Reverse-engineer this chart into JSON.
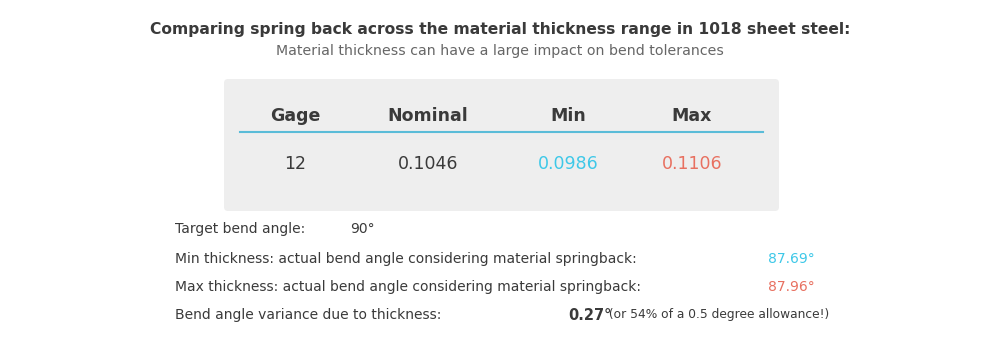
{
  "title_bold": "Comparing spring back across the material thickness range in 1018 sheet steel:",
  "title_sub": "Material thickness can have a large impact on bend tolerances",
  "table_headers": [
    "Gage",
    "Nominal",
    "Min",
    "Max"
  ],
  "table_row": [
    "12",
    "0.1046",
    "0.0986",
    "0.1106"
  ],
  "table_col_colors": [
    "#3a3a3a",
    "#3a3a3a",
    "#3ec8e8",
    "#e87060"
  ],
  "table_bg": "#eeeeee",
  "table_line_color": "#5abcd8",
  "line1_label": "Target bend angle:",
  "line1_value": "90°",
  "line2_label": "Min thickness: actual bend angle considering material springback:",
  "line2_value": "87.69°",
  "line2_color": "#3ec8e8",
  "line3_label": "Max thickness: actual bend angle considering material springback:",
  "line3_value": "87.96°",
  "line3_color": "#e87060",
  "line4_label": "Bend angle variance due to thickness:",
  "line4_value_bold": "0.27°",
  "line4_value_extra": " (or 54% of a 0.5 degree allowance!)",
  "bg_color": "#ffffff",
  "text_color": "#3a3a3a",
  "sub_text_color": "#666666"
}
